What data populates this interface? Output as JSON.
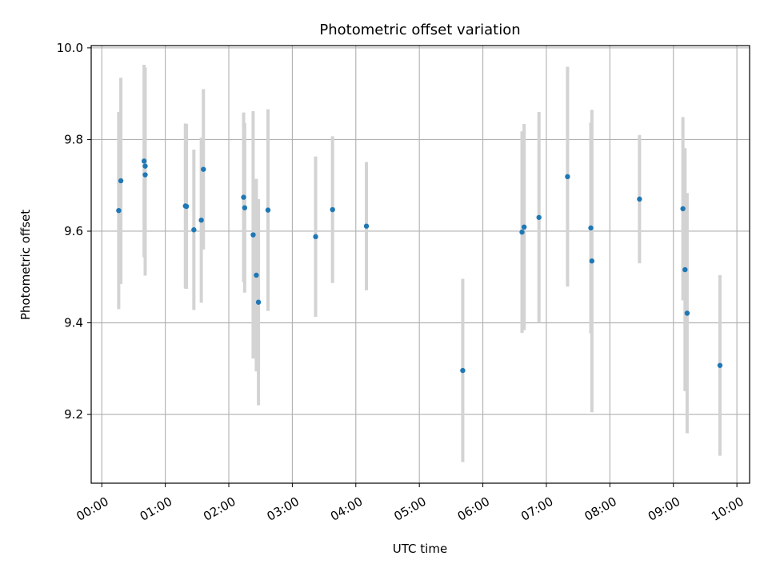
{
  "chart_data": {
    "type": "scatter",
    "title": "Photometric offset variation",
    "xlabel": "UTC time",
    "ylabel": "Photometric offset",
    "x_unit": "UTC time",
    "xlim": [
      "-00:10",
      "10:12"
    ],
    "ylim": [
      9.05,
      10.005
    ],
    "x_ticks": [
      "00:00",
      "01:00",
      "02:00",
      "03:00",
      "04:00",
      "05:00",
      "06:00",
      "07:00",
      "08:00",
      "09:00",
      "10:00"
    ],
    "y_ticks": [
      9.2,
      9.4,
      9.6,
      9.8,
      10.0
    ],
    "y_tick_labels": [
      "9.2",
      "9.4",
      "9.6",
      "9.8",
      "10.0"
    ],
    "grid": true,
    "colors": {
      "points": "#1f77b4",
      "errorbars": "#d3d3d3",
      "grid": "#b0b0b0"
    },
    "points": [
      {
        "x": "00:16",
        "y": 9.645,
        "err": 0.215
      },
      {
        "x": "00:18",
        "y": 9.71,
        "err": 0.225
      },
      {
        "x": "00:40",
        "y": 9.753,
        "err": 0.21
      },
      {
        "x": "00:41",
        "y": 9.742,
        "err": 0.215
      },
      {
        "x": "00:41",
        "y": 9.723,
        "err": 0.22
      },
      {
        "x": "01:19",
        "y": 9.655,
        "err": 0.18
      },
      {
        "x": "01:20",
        "y": 9.654,
        "err": 0.18
      },
      {
        "x": "01:27",
        "y": 9.603,
        "err": 0.175
      },
      {
        "x": "01:34",
        "y": 9.624,
        "err": 0.18
      },
      {
        "x": "01:36",
        "y": 9.735,
        "err": 0.175
      },
      {
        "x": "02:14",
        "y": 9.674,
        "err": 0.185
      },
      {
        "x": "02:15",
        "y": 9.651,
        "err": 0.185
      },
      {
        "x": "02:23",
        "y": 9.592,
        "err": 0.27
      },
      {
        "x": "02:26",
        "y": 9.504,
        "err": 0.21
      },
      {
        "x": "02:28",
        "y": 9.445,
        "err": 0.225
      },
      {
        "x": "02:37",
        "y": 9.646,
        "err": 0.22
      },
      {
        "x": "03:22",
        "y": 9.588,
        "err": 0.175
      },
      {
        "x": "03:38",
        "y": 9.647,
        "err": 0.16
      },
      {
        "x": "04:10",
        "y": 9.611,
        "err": 0.14
      },
      {
        "x": "05:41",
        "y": 9.296,
        "err": 0.2
      },
      {
        "x": "06:37",
        "y": 9.598,
        "err": 0.22
      },
      {
        "x": "06:39",
        "y": 9.609,
        "err": 0.225
      },
      {
        "x": "06:53",
        "y": 9.63,
        "err": 0.23
      },
      {
        "x": "07:20",
        "y": 9.719,
        "err": 0.24
      },
      {
        "x": "07:42",
        "y": 9.607,
        "err": 0.23
      },
      {
        "x": "07:43",
        "y": 9.535,
        "err": 0.33
      },
      {
        "x": "08:28",
        "y": 9.67,
        "err": 0.14
      },
      {
        "x": "09:09",
        "y": 9.649,
        "err": 0.2
      },
      {
        "x": "09:11",
        "y": 9.516,
        "err": 0.265
      },
      {
        "x": "09:13",
        "y": 9.421,
        "err": 0.262
      },
      {
        "x": "09:44",
        "y": 9.307,
        "err": 0.197
      }
    ]
  }
}
